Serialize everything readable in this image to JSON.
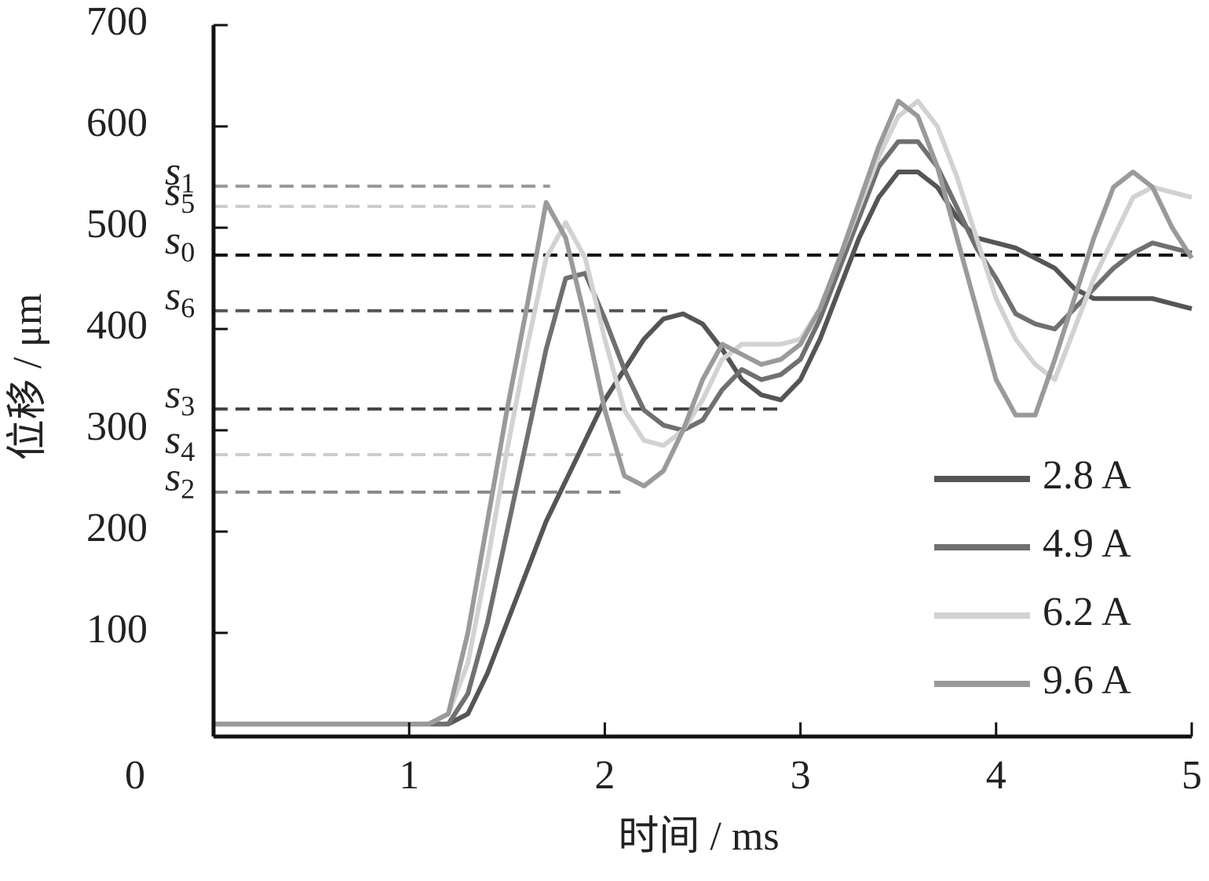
{
  "chart_data": {
    "type": "line",
    "xlabel": "时间 / ms",
    "ylabel": "位移 / μm",
    "xlim": [
      0,
      5
    ],
    "xticks": [
      0,
      1,
      2,
      3,
      4,
      5
    ],
    "ylim": [
      0,
      700
    ],
    "yticks": [
      100,
      200,
      300,
      400,
      500,
      600,
      700
    ],
    "legend": "lower right",
    "x": [
      0,
      0.1,
      0.2,
      0.3,
      0.4,
      0.5,
      0.6,
      0.7,
      0.8,
      0.9,
      1,
      1.1,
      1.2,
      1.3,
      1.4,
      1.5,
      1.6,
      1.7,
      1.8,
      1.9,
      2,
      2.1,
      2.2,
      2.3,
      2.4,
      2.5,
      2.6,
      2.7,
      2.8,
      2.9,
      3,
      3.1,
      3.2,
      3.3,
      3.4,
      3.5,
      3.6,
      3.7,
      3.8,
      3.9,
      4,
      4.1,
      4.2,
      4.3,
      4.4,
      4.5,
      4.6,
      4.7,
      4.8,
      4.9,
      5
    ],
    "series": [
      {
        "name": "2.8 A",
        "color": "#555555",
        "values": [
          10,
          10,
          10,
          10,
          10,
          10,
          10,
          10,
          10,
          10,
          10,
          10,
          10,
          20,
          60,
          110,
          160,
          210,
          250,
          290,
          330,
          360,
          390,
          410,
          415,
          405,
          380,
          350,
          335,
          330,
          350,
          390,
          440,
          490,
          530,
          555,
          555,
          540,
          510,
          490,
          485,
          480,
          470,
          460,
          440,
          430,
          430,
          430,
          430,
          425,
          420
        ]
      },
      {
        "name": "4.9 A",
        "color": "#707070",
        "values": [
          10,
          10,
          10,
          10,
          10,
          10,
          10,
          10,
          10,
          10,
          10,
          10,
          10,
          40,
          110,
          200,
          290,
          380,
          450,
          455,
          410,
          360,
          320,
          305,
          300,
          310,
          340,
          360,
          350,
          355,
          370,
          410,
          460,
          510,
          560,
          585,
          585,
          560,
          520,
          480,
          450,
          415,
          405,
          400,
          420,
          440,
          460,
          475,
          485,
          480,
          475
        ]
      },
      {
        "name": "6.2 A",
        "color": "#d2d2d2",
        "values": [
          10,
          10,
          10,
          10,
          10,
          10,
          10,
          10,
          10,
          10,
          10,
          10,
          20,
          70,
          170,
          280,
          380,
          470,
          505,
          470,
          390,
          320,
          290,
          285,
          300,
          330,
          370,
          385,
          385,
          385,
          390,
          420,
          470,
          520,
          570,
          610,
          625,
          600,
          550,
          490,
          430,
          390,
          365,
          350,
          400,
          450,
          490,
          530,
          540,
          535,
          530
        ]
      },
      {
        "name": "9.6 A",
        "color": "#9a9a9a",
        "values": [
          10,
          10,
          10,
          10,
          10,
          10,
          10,
          10,
          10,
          10,
          10,
          10,
          20,
          100,
          210,
          320,
          420,
          525,
          490,
          410,
          320,
          255,
          245,
          260,
          300,
          350,
          385,
          375,
          365,
          370,
          385,
          420,
          470,
          525,
          580,
          625,
          610,
          560,
          490,
          420,
          350,
          315,
          315,
          370,
          430,
          490,
          540,
          555,
          540,
          500,
          470
        ]
      }
    ],
    "reference_lines": [
      {
        "label": "s",
        "sub": "1",
        "value": 541,
        "x_end": 1.72,
        "color": "#999999"
      },
      {
        "label": "s",
        "sub": "5",
        "value": 521,
        "x_end": 1.72,
        "color": "#cccccc"
      },
      {
        "label": "s",
        "sub": "0",
        "value": 473,
        "x_end": 5,
        "color": "#111111"
      },
      {
        "label": "s",
        "sub": "6",
        "value": 418,
        "x_end": 2.32,
        "color": "#555555"
      },
      {
        "label": "s",
        "sub": "3",
        "value": 321,
        "x_end": 2.92,
        "color": "#444444"
      },
      {
        "label": "s",
        "sub": "4",
        "value": 276,
        "x_end": 2.12,
        "color": "#cccccc"
      },
      {
        "label": "s",
        "sub": "2",
        "value": 239,
        "x_end": 2.08,
        "color": "#888888"
      }
    ]
  }
}
